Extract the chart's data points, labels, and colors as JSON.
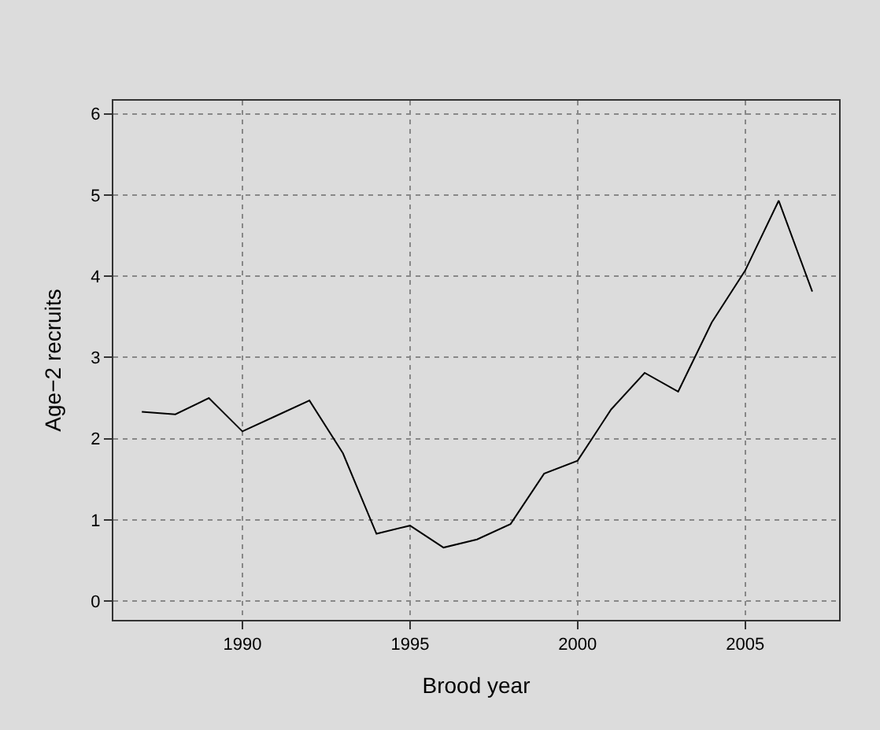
{
  "chart_data": {
    "type": "line",
    "xlabel": "Brood year",
    "ylabel": "Age−2 recruits",
    "x": [
      1987,
      1988,
      1989,
      1990,
      1991,
      1992,
      1993,
      1994,
      1995,
      1996,
      1997,
      1998,
      1999,
      2000,
      2001,
      2002,
      2003,
      2004,
      2005,
      2006,
      2007
    ],
    "series": [
      {
        "color": "#000000",
        "values": [
          2.33,
          2.3,
          2.5,
          2.09,
          2.28,
          2.47,
          1.82,
          0.83,
          0.93,
          0.66,
          0.76,
          0.95,
          1.57,
          1.73,
          2.36,
          2.81,
          2.58,
          3.43,
          4.07,
          4.93,
          3.81
        ]
      }
    ],
    "xlim": [
      1986.15,
      2007.8
    ],
    "ylim": [
      -0.23,
      6.16
    ],
    "xticks": [
      1990,
      1995,
      2000,
      2005
    ],
    "yticks": [
      0,
      1,
      2,
      3,
      4,
      5,
      6
    ],
    "grid": true,
    "line_style": "solid",
    "marker": "none"
  }
}
